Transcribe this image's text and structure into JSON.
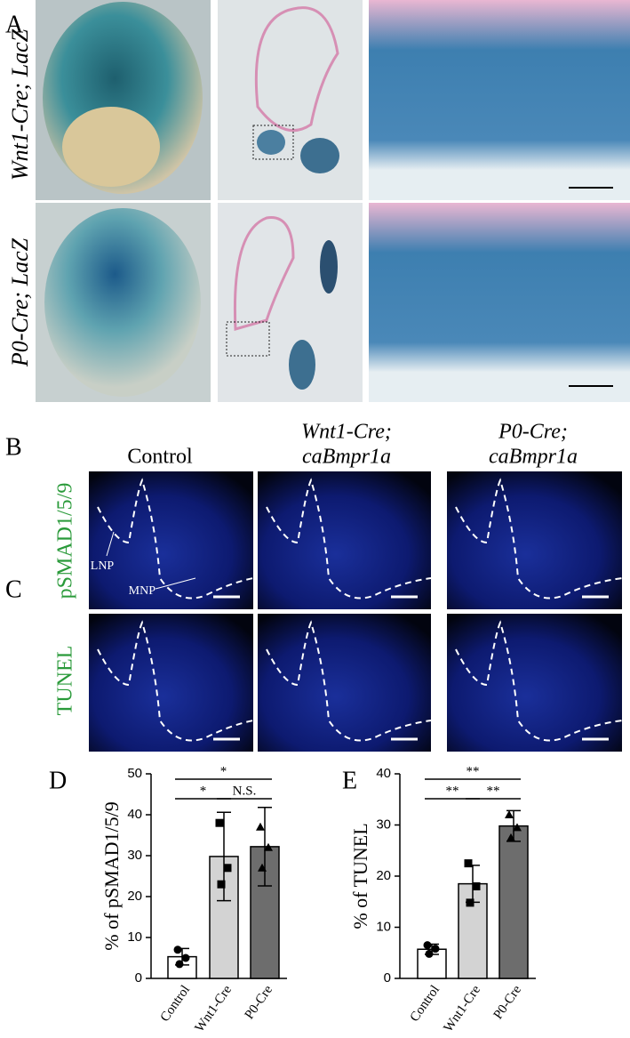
{
  "panel_labels": [
    "A",
    "B",
    "C",
    "D",
    "E"
  ],
  "row_labels_a": [
    "Wnt1-Cre; LacZ",
    "P0-Cre; LacZ"
  ],
  "column_headers_b": [
    [
      "Control"
    ],
    [
      "Wnt1-Cre;",
      "caBmpr1a"
    ],
    [
      "P0-Cre;",
      "caBmpr1a"
    ]
  ],
  "row_labels_bc": [
    "pSMAD1/5/9",
    "TUNEL"
  ],
  "annotations": [
    "LNP",
    "MNP"
  ],
  "chart_data": [
    {
      "type": "bar",
      "ylabel": "% of pSMAD1/5/9",
      "categories": [
        "Control",
        "Wnt1-Cre",
        "P0-Cre"
      ],
      "values": [
        5.3,
        29.8,
        32.2
      ],
      "errors": [
        2,
        10.8,
        9.6
      ],
      "points": [
        [
          7,
          5,
          3.5
        ],
        [
          38,
          27,
          23
        ],
        [
          37,
          32,
          27
        ]
      ],
      "colors": [
        "#ffffff",
        "#d3d3d3",
        "#6d6d6d"
      ],
      "ylim": [
        0,
        50
      ],
      "yticks": [
        0,
        10,
        20,
        30,
        40,
        50
      ],
      "significance": [
        "*",
        "*",
        "N.S."
      ]
    },
    {
      "type": "bar",
      "ylabel": "% of TUNEL",
      "categories": [
        "Control",
        "Wnt1-Cre",
        "P0-Cre"
      ],
      "values": [
        5.7,
        18.5,
        29.8
      ],
      "errors": [
        1,
        3.6,
        3
      ],
      "points": [
        [
          6.5,
          5.8,
          4.8
        ],
        [
          22.5,
          18,
          14.8
        ],
        [
          32,
          29.5,
          27.5
        ]
      ],
      "colors": [
        "#ffffff",
        "#d3d3d3",
        "#6d6d6d"
      ],
      "ylim": [
        0,
        40
      ],
      "yticks": [
        0,
        10,
        20,
        30,
        40
      ],
      "significance": [
        "**",
        "**",
        "**"
      ]
    }
  ]
}
